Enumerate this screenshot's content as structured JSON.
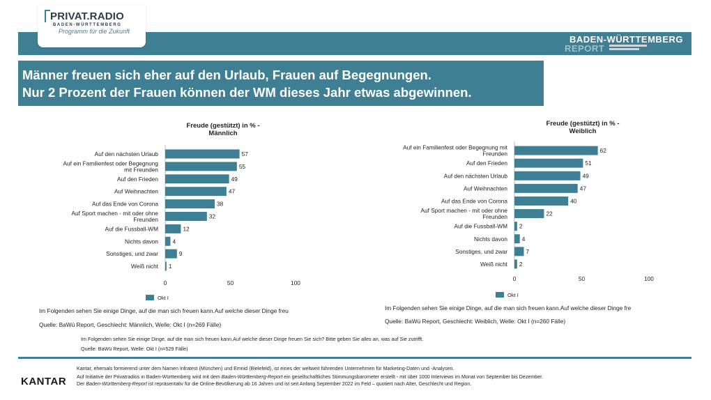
{
  "header": {
    "logo_main": "PRIVAT.RADIO",
    "logo_sub": "BADEN-WÜRTTEMBERG",
    "logo_tagline": "Programm für die Zukunft",
    "report_line1": "BADEN-WÜRTTEMBERG",
    "report_line2": "REPORT"
  },
  "headline": {
    "line1": "Männer freuen sich eher auf den Urlaub, Frauen auf Begegnungen.",
    "line2": "Nur  2 Prozent der Frauen können der WM dieses Jahr etwas abgewinnen."
  },
  "colors": {
    "bar": "#3f7f94",
    "band": "#3f7f94"
  },
  "chart_data": [
    {
      "type": "bar",
      "orientation": "horizontal",
      "title": "Freude (gestützt) in % - Männlich",
      "categories": [
        "Auf den nächsten Urlaub",
        "Auf ein Familienfest oder Begegnung mit Freunden",
        "Auf den Frieden",
        "Auf Weihnachten",
        "Auf das Ende von Corona",
        "Auf Sport machen - mit oder ohne Freunden",
        "Auf die Fussball-WM",
        "Nichts davon",
        "Sonstiges, und zwar",
        "Weiß nicht"
      ],
      "series": [
        {
          "name": "Okt I",
          "values": [
            57,
            55,
            49,
            47,
            38,
            32,
            12,
            4,
            9,
            1
          ]
        }
      ],
      "xlim": [
        0,
        100
      ],
      "xticks": [
        0,
        50,
        100
      ],
      "legend": "bottom-left"
    },
    {
      "type": "bar",
      "orientation": "horizontal",
      "title": "Freude (gestützt) in % - Weiblich",
      "categories": [
        "Auf ein Familienfest oder Begegnung mit Freunden",
        "Auf den Frieden",
        "Auf den nächsten Urlaub",
        "Auf Weihnachten",
        "Auf das Ende von Corona",
        "Auf Sport machen - mit oder ohne Freunden",
        "Auf die Fussball-WM",
        "Nichts davon",
        "Sonstiges, und zwar",
        "Weiß nicht"
      ],
      "series": [
        {
          "name": "Okt I",
          "values": [
            62,
            51,
            49,
            47,
            40,
            22,
            2,
            4,
            7,
            2
          ]
        }
      ],
      "xlim": [
        0,
        100
      ],
      "xticks": [
        0,
        50,
        100
      ],
      "legend": "bottom-left"
    }
  ],
  "notes": {
    "left_question": "Im Folgenden sehen Sie einige Dinge, auf die man sich freuen kann.Auf welche dieser Dinge freu",
    "left_source": "Quelle: BaWü Report, Geschlecht: Männlich, Welle: Okt I (n=269 Fälle)",
    "right_question": "Im Folgenden sehen Sie einige Dinge, auf die man sich freuen kann.Auf welche dieser Dinge fre",
    "right_source": "Quelle: BaWü Report, Geschlecht: Weiblich, Welle: Okt I (n=260 Fälle)",
    "center_question": "Im Folgenden sehen Sie einige Dinge, auf die man sich freuen kann.Auf welche dieser Dinge freuen Sie sich? Bitte geben Sie alles an, was auf Sie zutrifft.",
    "center_source": "Quelle: BaWü Report, Welle: Okt I (n=529 Fälle)"
  },
  "footer": {
    "kantar": "KANTAR",
    "line1": "Kantar, ehemals formierend unter dem Namen Infratest (München) und Emnid (Bielefeld), ist eines der weltweit führenden Unternehmen für Marketing-Daten und -Analysen.",
    "line2a": "Auf Initiative der Privatradios in Baden-Württemberg wird mit dem ",
    "line2b": "Baden-Württemberg-Report",
    "line2c": " ein gesellschaftliches Stimmungsbarometer erstellt - mit über 1000 Interviews im Monat von September bis Dezember.",
    "line3a": "Der ",
    "line3b": "Baden-Württemberg-Report",
    "line3c": " ist repräsentativ für die Online-Bevölkerung ab 16 Jahren und ist seit Anfang September 2022 im Feld – quotiert nach Alter, Geschlecht und Region."
  }
}
